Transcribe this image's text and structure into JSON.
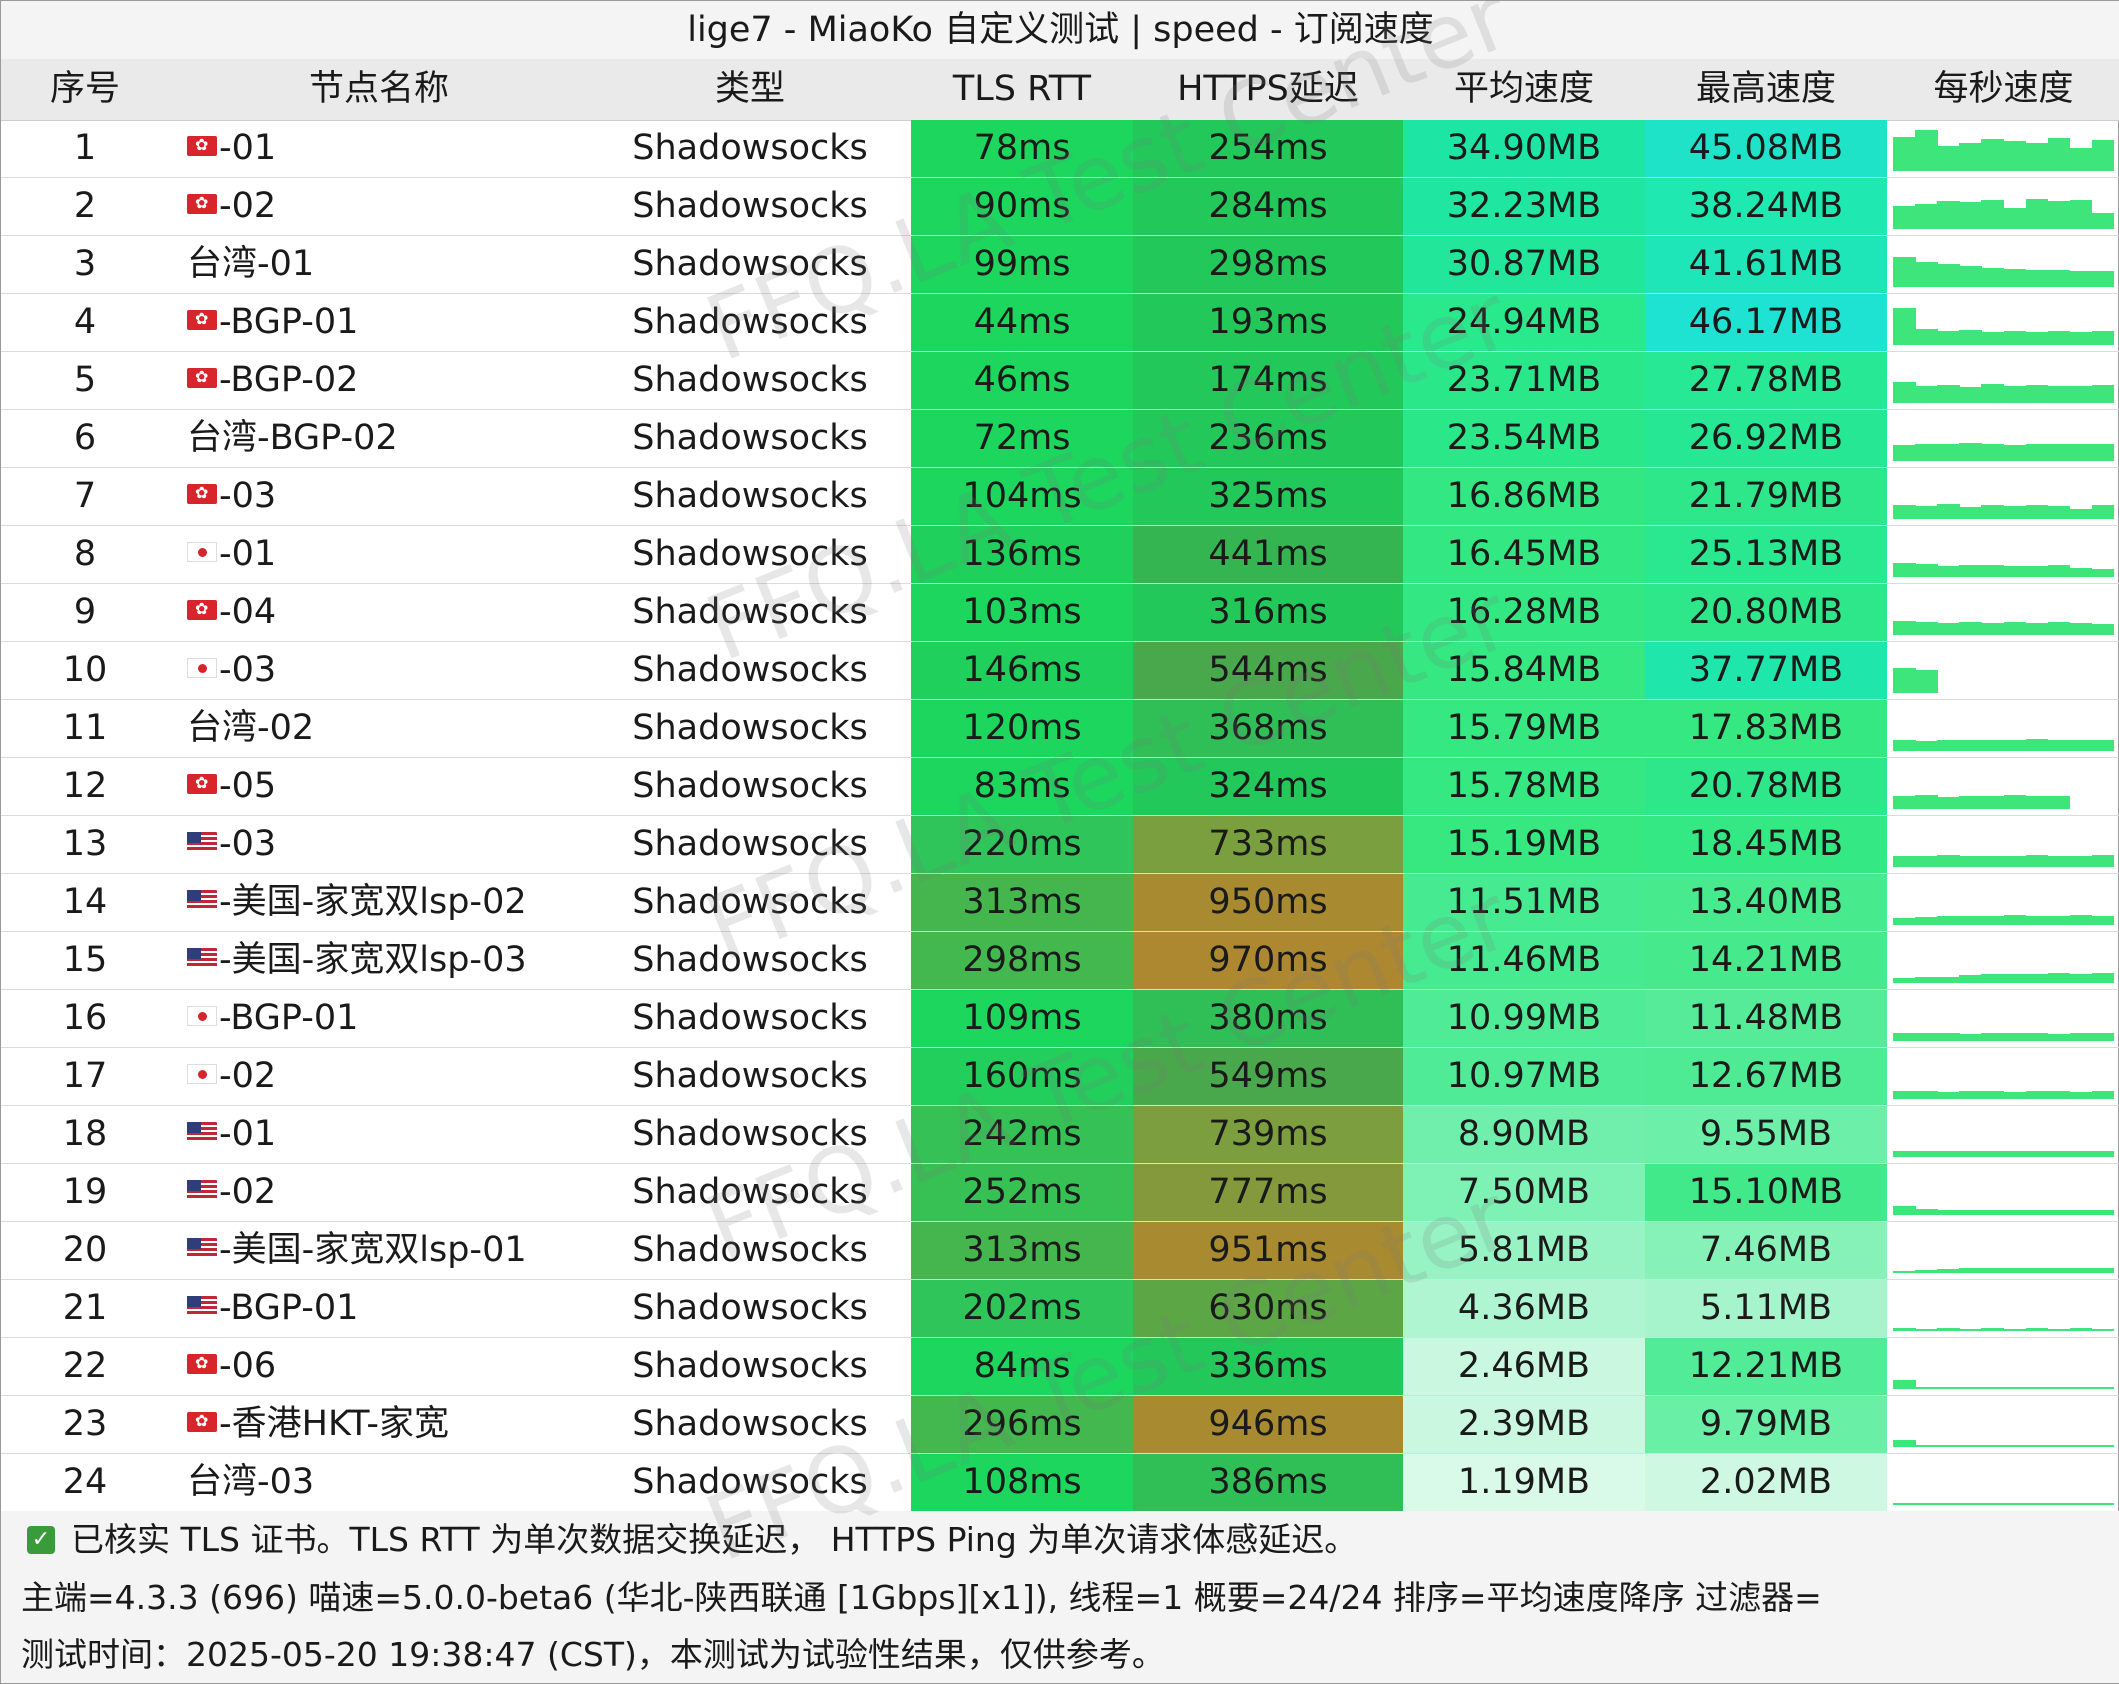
{
  "title": "lige7 - MiaoKo 自定义测试 | speed - 订阅速度",
  "headers": [
    "序号",
    "节点名称",
    "类型",
    "TLS RTT",
    "HTTPS延迟",
    "平均速度",
    "最高速度",
    "每秒速度"
  ],
  "rows": [
    {
      "idx": "1",
      "flag": "hk",
      "name": "-01",
      "type": "Shadowsocks",
      "tls": "78ms",
      "https": "254ms",
      "avg": "34.90MB",
      "max": "45.08MB",
      "tls_color": "#1cd65e",
      "https_color": "#22c85a",
      "avg_color": "#1de6a4",
      "max_color": "#1fe3c8",
      "spark": [
        0.75,
        0.9,
        0.55,
        0.6,
        0.7,
        0.65,
        0.6,
        0.72,
        0.5,
        0.68
      ]
    },
    {
      "idx": "2",
      "flag": "hk",
      "name": "-02",
      "type": "Shadowsocks",
      "tls": "90ms",
      "https": "284ms",
      "avg": "32.23MB",
      "max": "38.24MB",
      "tls_color": "#1cd65e",
      "https_color": "#22c85a",
      "avg_color": "#1fe6a0",
      "max_color": "#1fe8b0",
      "spark": [
        0.5,
        0.55,
        0.6,
        0.58,
        0.62,
        0.45,
        0.66,
        0.6,
        0.64,
        0.35
      ]
    },
    {
      "idx": "3",
      "flag": "none",
      "name": "台湾-01",
      "type": "Shadowsocks",
      "tls": "99ms",
      "https": "298ms",
      "avg": "30.87MB",
      "max": "41.61MB",
      "tls_color": "#1cd65e",
      "https_color": "#22c85a",
      "avg_color": "#22e69a",
      "max_color": "#1fe6b8",
      "spark": [
        0.65,
        0.55,
        0.5,
        0.45,
        0.42,
        0.4,
        0.38,
        0.36,
        0.35,
        0.34
      ]
    },
    {
      "idx": "4",
      "flag": "hk",
      "name": "-BGP-01",
      "type": "Shadowsocks",
      "tls": "44ms",
      "https": "193ms",
      "avg": "24.94MB",
      "max": "46.17MB",
      "tls_color": "#1cd65e",
      "https_color": "#22c85a",
      "avg_color": "#2ae88c",
      "max_color": "#1ee2d2",
      "spark": [
        0.8,
        0.35,
        0.3,
        0.32,
        0.28,
        0.3,
        0.29,
        0.31,
        0.28,
        0.3
      ]
    },
    {
      "idx": "5",
      "flag": "hk",
      "name": "-BGP-02",
      "type": "Shadowsocks",
      "tls": "46ms",
      "https": "174ms",
      "avg": "23.71MB",
      "max": "27.78MB",
      "tls_color": "#1cd65e",
      "https_color": "#22c85a",
      "avg_color": "#2ae88a",
      "max_color": "#26e895",
      "spark": [
        0.45,
        0.38,
        0.4,
        0.35,
        0.42,
        0.36,
        0.4,
        0.38,
        0.37,
        0.39
      ]
    },
    {
      "idx": "6",
      "flag": "none",
      "name": "台湾-BGP-02",
      "type": "Shadowsocks",
      "tls": "72ms",
      "https": "236ms",
      "avg": "23.54MB",
      "max": "26.92MB",
      "tls_color": "#1cd65e",
      "https_color": "#22c85a",
      "avg_color": "#2ae88a",
      "max_color": "#26e894",
      "spark": [
        0.35,
        0.38,
        0.36,
        0.4,
        0.37,
        0.35,
        0.38,
        0.36,
        0.37,
        0.38
      ]
    },
    {
      "idx": "7",
      "flag": "hk",
      "name": "-03",
      "type": "Shadowsocks",
      "tls": "104ms",
      "https": "325ms",
      "avg": "16.86MB",
      "max": "21.79MB",
      "tls_color": "#1cd65e",
      "https_color": "#22c85a",
      "avg_color": "#33e882",
      "max_color": "#2ee78a",
      "spark": [
        0.3,
        0.28,
        0.32,
        0.27,
        0.3,
        0.29,
        0.31,
        0.28,
        0.22,
        0.3
      ]
    },
    {
      "idx": "8",
      "flag": "jp",
      "name": "-01",
      "type": "Shadowsocks",
      "tls": "136ms",
      "https": "441ms",
      "avg": "16.45MB",
      "max": "25.13MB",
      "tls_color": "#20d05c",
      "https_color": "#35b552",
      "avg_color": "#33e882",
      "max_color": "#2ae890",
      "spark": [
        0.3,
        0.28,
        0.25,
        0.27,
        0.26,
        0.24,
        0.25,
        0.26,
        0.2,
        0.18
      ]
    },
    {
      "idx": "9",
      "flag": "hk",
      "name": "-04",
      "type": "Shadowsocks",
      "tls": "103ms",
      "https": "316ms",
      "avg": "16.28MB",
      "max": "20.80MB",
      "tls_color": "#1cd65e",
      "https_color": "#22c85a",
      "avg_color": "#33e882",
      "max_color": "#2ee78a",
      "spark": [
        0.3,
        0.28,
        0.27,
        0.29,
        0.26,
        0.28,
        0.27,
        0.28,
        0.26,
        0.25
      ]
    },
    {
      "idx": "10",
      "flag": "jp",
      "name": "-03",
      "type": "Shadowsocks",
      "tls": "146ms",
      "https": "544ms",
      "avg": "15.84MB",
      "max": "37.77MB",
      "tls_color": "#20d05c",
      "https_color": "#4aa84c",
      "avg_color": "#35e881",
      "max_color": "#1fe7ab",
      "spark": [
        0.55,
        0.5,
        0,
        0,
        0,
        0,
        0,
        0,
        0,
        0
      ]
    },
    {
      "idx": "11",
      "flag": "none",
      "name": "台湾-02",
      "type": "Shadowsocks",
      "tls": "120ms",
      "https": "368ms",
      "avg": "15.79MB",
      "max": "17.83MB",
      "tls_color": "#1cd65e",
      "https_color": "#2fbf56",
      "avg_color": "#35e881",
      "max_color": "#36e881",
      "spark": [
        0.25,
        0.22,
        0.24,
        0.23,
        0.25,
        0.24,
        0.26,
        0.24,
        0.25,
        0.24
      ]
    },
    {
      "idx": "12",
      "flag": "hk",
      "name": "-05",
      "type": "Shadowsocks",
      "tls": "83ms",
      "https": "324ms",
      "avg": "15.78MB",
      "max": "20.78MB",
      "tls_color": "#1cd65e",
      "https_color": "#22c85a",
      "avg_color": "#35e881",
      "max_color": "#2ee78a",
      "spark": [
        0.28,
        0.3,
        0.27,
        0.29,
        0.28,
        0.3,
        0.29,
        0.28,
        0,
        0
      ]
    },
    {
      "idx": "13",
      "flag": "us",
      "name": "-03",
      "type": "Shadowsocks",
      "tls": "220ms",
      "https": "733ms",
      "avg": "15.19MB",
      "max": "18.45MB",
      "tls_color": "#2fc55a",
      "https_color": "#7a9f3e",
      "avg_color": "#37e880",
      "max_color": "#34e884",
      "spark": [
        0.25,
        0.24,
        0.26,
        0.25,
        0.24,
        0.25,
        0.26,
        0.24,
        0.25,
        0.26
      ]
    },
    {
      "idx": "14",
      "flag": "us",
      "name": "-美国-家宽双lsp-02",
      "type": "Shadowsocks",
      "tls": "313ms",
      "https": "950ms",
      "avg": "11.51MB",
      "max": "13.40MB",
      "tls_color": "#45b64e",
      "https_color": "#a88a30",
      "avg_color": "#46ea90",
      "max_color": "#48ea8e",
      "spark": [
        0.15,
        0.18,
        0.2,
        0.19,
        0.2,
        0.21,
        0.2,
        0.2,
        0.21,
        0.2
      ]
    },
    {
      "idx": "15",
      "flag": "us",
      "name": "-美国-家宽双lsp-03",
      "type": "Shadowsocks",
      "tls": "298ms",
      "https": "970ms",
      "avg": "11.46MB",
      "max": "14.21MB",
      "tls_color": "#42b84f",
      "https_color": "#ad8830",
      "avg_color": "#46ea90",
      "max_color": "#46ea8c",
      "spark": [
        0.1,
        0.12,
        0.14,
        0.18,
        0.2,
        0.2,
        0.2,
        0.21,
        0.2,
        0.21
      ]
    },
    {
      "idx": "16",
      "flag": "jp",
      "name": "-BGP-01",
      "type": "Shadowsocks",
      "tls": "109ms",
      "https": "380ms",
      "avg": "10.99MB",
      "max": "11.48MB",
      "tls_color": "#1cd65e",
      "https_color": "#2fbf56",
      "avg_color": "#50eb96",
      "max_color": "#55eb98",
      "spark": [
        0.18,
        0.17,
        0.18,
        0.16,
        0.17,
        0.18,
        0.17,
        0.16,
        0.17,
        0.18
      ]
    },
    {
      "idx": "17",
      "flag": "jp",
      "name": "-02",
      "type": "Shadowsocks",
      "tls": "160ms",
      "https": "549ms",
      "avg": "10.97MB",
      "max": "12.67MB",
      "tls_color": "#22cf5c",
      "https_color": "#4aa84c",
      "avg_color": "#50eb96",
      "max_color": "#4eeb94",
      "spark": [
        0.18,
        0.17,
        0.16,
        0.18,
        0.17,
        0.16,
        0.17,
        0.18,
        0.16,
        0.17
      ]
    },
    {
      "idx": "18",
      "flag": "us",
      "name": "-01",
      "type": "Shadowsocks",
      "tls": "242ms",
      "https": "739ms",
      "avg": "8.90MB",
      "max": "9.55MB",
      "tls_color": "#35c155",
      "https_color": "#7c9e3e",
      "avg_color": "#6fefab",
      "max_color": "#6cefa8",
      "spark": [
        0.12,
        0.14,
        0.13,
        0.14,
        0.13,
        0.12,
        0.14,
        0.13,
        0.12,
        0.13
      ]
    },
    {
      "idx": "19",
      "flag": "us",
      "name": "-02",
      "type": "Shadowsocks",
      "tls": "252ms",
      "https": "777ms",
      "avg": "7.50MB",
      "max": "15.10MB",
      "tls_color": "#37c054",
      "https_color": "#83993b",
      "avg_color": "#7ef1b4",
      "max_color": "#42e98a",
      "spark": [
        0.2,
        0.12,
        0.1,
        0.11,
        0.1,
        0.11,
        0.1,
        0.11,
        0.1,
        0.11
      ]
    },
    {
      "idx": "20",
      "flag": "us",
      "name": "-美国-家宽双lsp-01",
      "type": "Shadowsocks",
      "tls": "313ms",
      "https": "951ms",
      "avg": "5.81MB",
      "max": "7.46MB",
      "tls_color": "#45b64e",
      "https_color": "#a88a30",
      "avg_color": "#97f3c3",
      "max_color": "#86f2b8",
      "spark": [
        0.05,
        0.06,
        0.08,
        0.1,
        0.1,
        0.1,
        0.1,
        0.1,
        0.1,
        0.1
      ]
    },
    {
      "idx": "21",
      "flag": "us",
      "name": "-BGP-01",
      "type": "Shadowsocks",
      "tls": "202ms",
      "https": "630ms",
      "avg": "4.36MB",
      "max": "5.11MB",
      "tls_color": "#2fc55a",
      "https_color": "#5ca646",
      "avg_color": "#b0f5d1",
      "max_color": "#a6f4cb",
      "spark": [
        0.06,
        0.05,
        0.06,
        0.05,
        0.06,
        0.05,
        0.06,
        0.05,
        0.06,
        0.05
      ]
    },
    {
      "idx": "22",
      "flag": "hk",
      "name": "-06",
      "type": "Shadowsocks",
      "tls": "84ms",
      "https": "336ms",
      "avg": "2.46MB",
      "max": "12.21MB",
      "tls_color": "#1cd65e",
      "https_color": "#22c85a",
      "avg_color": "#c9f7df",
      "max_color": "#52eb97",
      "spark": [
        0.2,
        0.04,
        0.04,
        0.03,
        0.04,
        0.03,
        0.04,
        0.03,
        0.04,
        0.03
      ]
    },
    {
      "idx": "23",
      "flag": "hk",
      "name": "-香港HKT-家宽",
      "type": "Shadowsocks",
      "tls": "296ms",
      "https": "946ms",
      "avg": "2.39MB",
      "max": "9.79MB",
      "tls_color": "#42b84f",
      "https_color": "#a88a30",
      "avg_color": "#caf7e0",
      "max_color": "#6aefa6",
      "spark": [
        0.15,
        0.03,
        0.02,
        0.02,
        0.02,
        0.02,
        0.02,
        0.02,
        0.02,
        0.02
      ]
    },
    {
      "idx": "24",
      "flag": "none",
      "name": "台湾-03",
      "type": "Shadowsocks",
      "tls": "108ms",
      "https": "386ms",
      "avg": "1.19MB",
      "max": "2.02MB",
      "tls_color": "#1cd65e",
      "https_color": "#2fbf56",
      "avg_color": "#d9f9e9",
      "max_color": "#cff8e3",
      "spark": [
        0.02,
        0.02,
        0.02,
        0.02,
        0.02,
        0.02,
        0.02,
        0.02,
        0.02,
        0.02
      ]
    }
  ],
  "footer": {
    "line1": "已核实 TLS 证书。TLS RTT 为单次数据交换延迟， HTTPS Ping 为单次请求体感延迟。",
    "line2": "主端=4.3.3 (696) 喵速=5.0.0-beta6 (华北-陕西联通 [1Gbps][x1]), 线程=1 概要=24/24 排序=平均速度降序 过滤器=",
    "line3": "测试时间：2025-05-20 19:38:47 (CST)，本测试为试验性结果，仅供参考。"
  },
  "watermark": "FFQ.LA Test Center",
  "colors": {
    "spark": "#3de57a",
    "check": "#3a9b3a",
    "header_bg": "#eaeaea"
  }
}
